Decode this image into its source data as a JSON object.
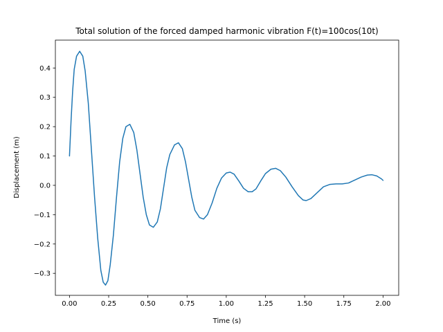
{
  "chart_data": {
    "type": "line",
    "title": "Total solution of the forced damped harmonic vibration F(t)=100cos(10t)",
    "xlabel": "Time (s)",
    "ylabel": "Displacement (m)",
    "xlim": [
      -0.09,
      2.1
    ],
    "ylim": [
      -0.375,
      0.495
    ],
    "grid": false,
    "legend": "none",
    "x_ticks": [
      0.0,
      0.25,
      0.5,
      0.75,
      1.0,
      1.25,
      1.5,
      1.75,
      2.0
    ],
    "x_tick_labels": [
      "0.00",
      "0.25",
      "0.50",
      "0.75",
      "1.00",
      "1.25",
      "1.50",
      "1.75",
      "2.00"
    ],
    "y_ticks": [
      -0.3,
      -0.2,
      -0.1,
      0.0,
      0.1,
      0.2,
      0.3,
      0.4
    ],
    "y_tick_labels": [
      "−0.3",
      "−0.2",
      "−0.1",
      "0.0",
      "0.1",
      "0.2",
      "0.3",
      "0.4"
    ],
    "series": [
      {
        "color": "#1f77b4",
        "points": [
          [
            0.0,
            0.1
          ],
          [
            0.01,
            0.22
          ],
          [
            0.02,
            0.32
          ],
          [
            0.03,
            0.395
          ],
          [
            0.045,
            0.44
          ],
          [
            0.065,
            0.457
          ],
          [
            0.085,
            0.44
          ],
          [
            0.1,
            0.39
          ],
          [
            0.12,
            0.28
          ],
          [
            0.14,
            0.12
          ],
          [
            0.16,
            -0.04
          ],
          [
            0.18,
            -0.18
          ],
          [
            0.2,
            -0.29
          ],
          [
            0.215,
            -0.33
          ],
          [
            0.23,
            -0.34
          ],
          [
            0.245,
            -0.325
          ],
          [
            0.26,
            -0.27
          ],
          [
            0.28,
            -0.17
          ],
          [
            0.3,
            -0.04
          ],
          [
            0.32,
            0.08
          ],
          [
            0.34,
            0.16
          ],
          [
            0.36,
            0.2
          ],
          [
            0.385,
            0.208
          ],
          [
            0.41,
            0.18
          ],
          [
            0.43,
            0.12
          ],
          [
            0.45,
            0.04
          ],
          [
            0.47,
            -0.04
          ],
          [
            0.49,
            -0.1
          ],
          [
            0.51,
            -0.135
          ],
          [
            0.535,
            -0.143
          ],
          [
            0.56,
            -0.125
          ],
          [
            0.58,
            -0.08
          ],
          [
            0.6,
            -0.01
          ],
          [
            0.62,
            0.06
          ],
          [
            0.64,
            0.105
          ],
          [
            0.67,
            0.138
          ],
          [
            0.695,
            0.145
          ],
          [
            0.72,
            0.125
          ],
          [
            0.74,
            0.08
          ],
          [
            0.76,
            0.02
          ],
          [
            0.78,
            -0.04
          ],
          [
            0.8,
            -0.085
          ],
          [
            0.83,
            -0.11
          ],
          [
            0.855,
            -0.115
          ],
          [
            0.88,
            -0.1
          ],
          [
            0.91,
            -0.06
          ],
          [
            0.94,
            -0.01
          ],
          [
            0.97,
            0.025
          ],
          [
            1.0,
            0.042
          ],
          [
            1.025,
            0.045
          ],
          [
            1.05,
            0.038
          ],
          [
            1.08,
            0.015
          ],
          [
            1.11,
            -0.01
          ],
          [
            1.14,
            -0.022
          ],
          [
            1.165,
            -0.022
          ],
          [
            1.19,
            -0.012
          ],
          [
            1.22,
            0.015
          ],
          [
            1.25,
            0.04
          ],
          [
            1.285,
            0.055
          ],
          [
            1.315,
            0.058
          ],
          [
            1.345,
            0.05
          ],
          [
            1.38,
            0.028
          ],
          [
            1.42,
            -0.005
          ],
          [
            1.46,
            -0.035
          ],
          [
            1.49,
            -0.05
          ],
          [
            1.51,
            -0.052
          ],
          [
            1.54,
            -0.045
          ],
          [
            1.58,
            -0.025
          ],
          [
            1.62,
            -0.005
          ],
          [
            1.66,
            0.003
          ],
          [
            1.7,
            0.005
          ],
          [
            1.74,
            0.005
          ],
          [
            1.78,
            0.008
          ],
          [
            1.82,
            0.018
          ],
          [
            1.86,
            0.028
          ],
          [
            1.9,
            0.035
          ],
          [
            1.93,
            0.036
          ],
          [
            1.96,
            0.032
          ],
          [
            1.99,
            0.022
          ],
          [
            2.0,
            0.017
          ]
        ]
      }
    ]
  }
}
